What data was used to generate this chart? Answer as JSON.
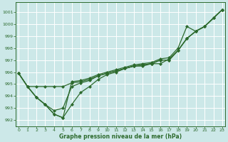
{
  "xlabel": "Graphe pression niveau de la mer (hPa)",
  "background_color": "#cce8e8",
  "grid_color": "#ffffff",
  "line_color": "#2d6a2d",
  "ylim": [
    991.5,
    1001.8
  ],
  "xlim": [
    -0.3,
    23.3
  ],
  "yticks": [
    992,
    993,
    994,
    995,
    996,
    997,
    998,
    999,
    1000,
    1001
  ],
  "xticks": [
    0,
    1,
    2,
    3,
    4,
    5,
    6,
    7,
    8,
    9,
    10,
    11,
    12,
    13,
    14,
    15,
    16,
    17,
    18,
    19,
    20,
    21,
    22,
    23
  ],
  "line1_x": [
    0,
    1,
    2,
    3,
    4,
    5,
    6,
    7,
    8,
    9,
    10,
    11,
    12,
    13,
    14,
    15,
    16,
    17,
    18,
    19,
    20,
    21,
    22,
    23
  ],
  "line1_y": [
    995.9,
    994.8,
    993.9,
    993.3,
    992.5,
    992.2,
    993.3,
    994.3,
    994.8,
    995.4,
    995.8,
    996.0,
    996.3,
    996.5,
    996.5,
    996.7,
    996.7,
    997.1,
    997.8,
    998.8,
    999.4,
    999.8,
    1000.5,
    1001.2
  ],
  "line2_x": [
    0,
    1,
    2,
    3,
    4,
    5,
    6,
    7,
    8,
    9,
    10,
    11,
    12,
    13,
    14,
    15,
    16,
    17,
    18,
    19,
    20,
    21,
    22,
    23
  ],
  "line2_y": [
    995.9,
    994.8,
    994.8,
    994.8,
    994.8,
    994.8,
    995.1,
    995.2,
    995.4,
    995.7,
    995.9,
    996.1,
    996.3,
    996.5,
    996.6,
    996.7,
    997.0,
    997.0,
    997.8,
    998.8,
    999.4,
    999.8,
    1000.5,
    1001.2
  ],
  "line3_x": [
    0,
    1,
    2,
    3,
    4,
    5,
    6,
    7,
    8,
    9,
    10,
    11,
    12,
    13,
    14,
    15,
    16,
    17,
    18,
    19,
    20,
    21,
    22,
    23
  ],
  "line3_y": [
    995.9,
    994.8,
    993.9,
    993.3,
    992.8,
    993.0,
    994.8,
    995.1,
    995.3,
    995.7,
    995.9,
    996.1,
    996.3,
    996.5,
    996.6,
    996.7,
    997.0,
    997.0,
    997.8,
    998.8,
    999.4,
    999.8,
    1000.5,
    1001.2
  ],
  "line4_x": [
    0,
    1,
    2,
    3,
    4,
    5,
    6,
    7,
    8,
    9,
    10,
    11,
    12,
    13,
    14,
    15,
    16,
    17,
    18,
    19,
    20,
    21,
    22,
    23
  ],
  "line4_y": [
    995.9,
    994.8,
    993.9,
    993.3,
    992.5,
    992.2,
    995.2,
    995.3,
    995.5,
    995.8,
    996.0,
    996.2,
    996.4,
    996.6,
    996.7,
    996.8,
    997.1,
    997.2,
    998.0,
    999.8,
    999.4,
    999.8,
    1000.5,
    1001.2
  ]
}
